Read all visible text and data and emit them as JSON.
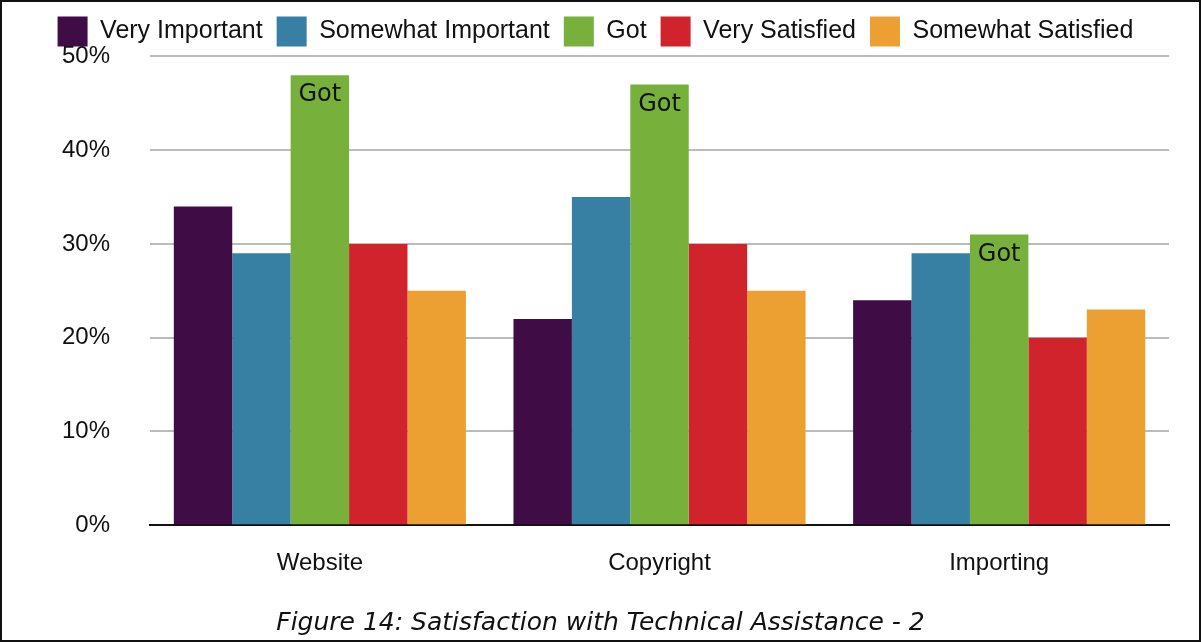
{
  "chart_data": {
    "type": "bar",
    "categories": [
      "Website",
      "Copyright",
      "Importing"
    ],
    "series": [
      {
        "name": "Very Important",
        "color": "#3f0c45",
        "values": [
          34,
          22,
          24
        ]
      },
      {
        "name": "Somewhat Important",
        "color": "#3780a4",
        "values": [
          29,
          35,
          29
        ]
      },
      {
        "name": "Got",
        "color": "#78b03c",
        "values": [
          48,
          47,
          31
        ]
      },
      {
        "name": "Very Satisfied",
        "color": "#d1232b",
        "values": [
          30,
          30,
          20
        ]
      },
      {
        "name": "Somewhat Satisfied",
        "color": "#eba031",
        "values": [
          25,
          25,
          23
        ]
      }
    ],
    "ylim": [
      0,
      50
    ],
    "yticks": [
      {
        "value": 0,
        "label": "0%"
      },
      {
        "value": 10,
        "label": "10%"
      },
      {
        "value": 20,
        "label": "20%"
      },
      {
        "value": 30,
        "label": "30%"
      },
      {
        "value": 40,
        "label": "40%"
      },
      {
        "value": 50,
        "label": "50%"
      }
    ],
    "grid": "y",
    "legend": "top",
    "annotations": [
      {
        "text": "Got",
        "x": "Website",
        "y": 48
      },
      {
        "text": "Got",
        "x": "Copyright",
        "y": 47
      },
      {
        "text": "Got",
        "x": "Importing",
        "y": 31
      },
      "Figure 14: Satisfaction with Technical Assistance - 2"
    ]
  }
}
